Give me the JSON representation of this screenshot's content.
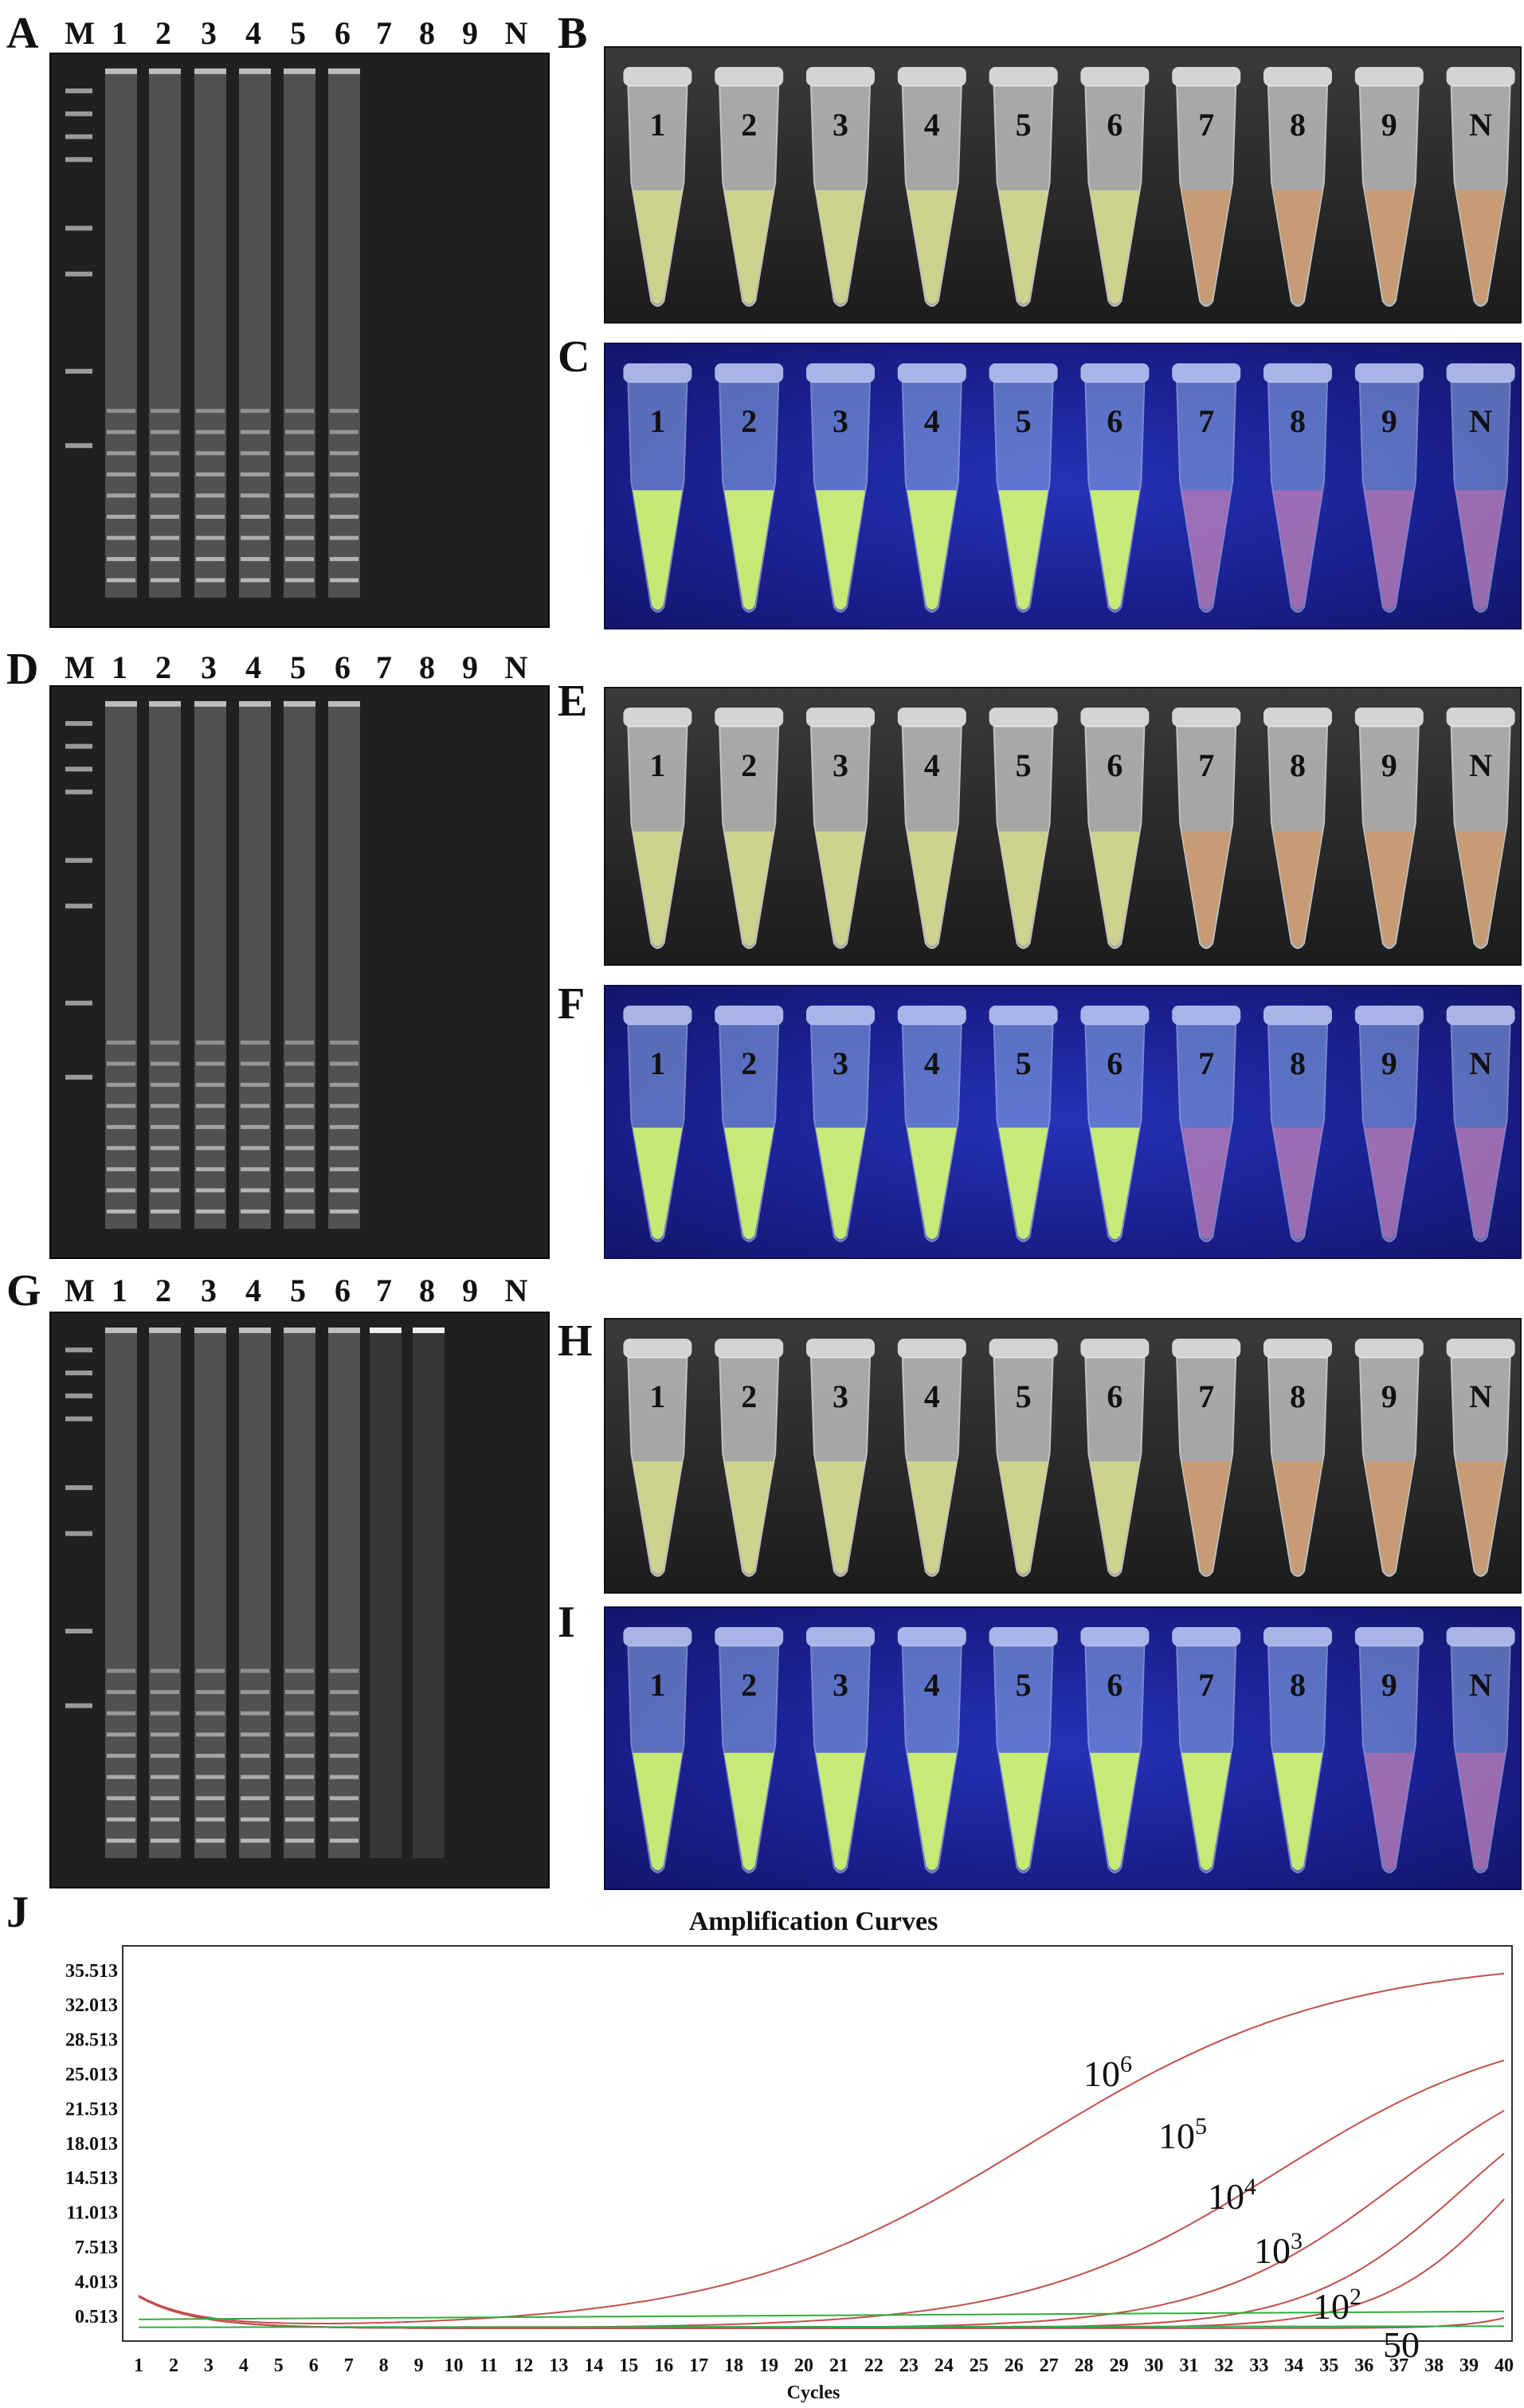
{
  "figure": {
    "panels": {
      "A": "A",
      "B": "B",
      "C": "C",
      "D": "D",
      "E": "E",
      "F": "F",
      "G": "G",
      "H": "H",
      "I": "I",
      "J": "J"
    },
    "gel_lane_labels": [
      "M",
      "1",
      "2",
      "3",
      "4",
      "5",
      "6",
      "7",
      "8",
      "9",
      "N"
    ],
    "tube_labels": [
      "1",
      "2",
      "3",
      "4",
      "5",
      "6",
      "7",
      "8",
      "9",
      "N"
    ],
    "gels": {
      "A": {
        "bright_lanes": [
          1,
          2,
          3,
          4,
          5,
          6
        ],
        "dim_lanes": []
      },
      "D": {
        "bright_lanes": [
          1,
          2,
          3,
          4,
          5,
          6
        ],
        "dim_lanes": []
      },
      "G": {
        "bright_lanes": [
          1,
          2,
          3,
          4,
          5,
          6
        ],
        "dim_lanes": [
          7,
          8
        ]
      }
    },
    "tube_results": {
      "B": {
        "mode": "daylight",
        "positive_through": 6
      },
      "C": {
        "mode": "uv",
        "positive_through": 6
      },
      "E": {
        "mode": "daylight",
        "positive_through": 6
      },
      "F": {
        "mode": "uv",
        "positive_through": 6
      },
      "H": {
        "mode": "daylight",
        "positive_through": 6
      },
      "I": {
        "mode": "uv",
        "positive_through": 8
      }
    },
    "colors": {
      "positive_day": "#d8dd8a",
      "negative_day": "#cf9a68",
      "positive_uv": "#d9ff6a",
      "negative_uv": "#c66aa8",
      "curve_red": "#c0504d",
      "curve_green": "#2fae3a"
    }
  },
  "chart_data": {
    "type": "line",
    "title": "Amplification Curves",
    "xlabel": "Cycles",
    "ylabel": "",
    "x_ticks": [
      "1",
      "2",
      "3",
      "4",
      "5",
      "6",
      "7",
      "8",
      "9",
      "10",
      "11",
      "12",
      "13",
      "14",
      "15",
      "16",
      "17",
      "18",
      "19",
      "20",
      "21",
      "22",
      "23",
      "24",
      "25",
      "26",
      "27",
      "28",
      "29",
      "30",
      "31",
      "32",
      "33",
      "34",
      "35",
      "36",
      "37",
      "38",
      "39",
      "40"
    ],
    "y_ticks": [
      "35.513",
      "32.013",
      "28.513",
      "25.013",
      "21.513",
      "18.013",
      "14.513",
      "11.013",
      "7.513",
      "4.013",
      "0.513"
    ],
    "xlim": [
      1,
      40
    ],
    "ylim": [
      -2,
      38
    ],
    "series": [
      {
        "name": "10^6",
        "label_base": "10",
        "label_exp": "6",
        "color": "#c0504d",
        "ct": 22.5,
        "plateau": 37.5,
        "k": 0.23
      },
      {
        "name": "10^5",
        "label_base": "10",
        "label_exp": "5",
        "color": "#c0504d",
        "ct": 29.5,
        "plateau": 31.5,
        "k": 0.28
      },
      {
        "name": "10^4",
        "label_base": "10",
        "label_exp": "4",
        "color": "#c0504d",
        "ct": 33.0,
        "plateau": 29.5,
        "k": 0.36
      },
      {
        "name": "10^3",
        "label_base": "10",
        "label_exp": "3",
        "color": "#c0504d",
        "ct": 34.8,
        "plateau": 28.0,
        "k": 0.45
      },
      {
        "name": "10^2",
        "label_base": "10",
        "label_exp": "2",
        "color": "#c0504d",
        "ct": 36.5,
        "plateau": 30.0,
        "k": 0.52
      },
      {
        "name": "50",
        "label_base": "50",
        "label_exp": "",
        "color": "#c0504d",
        "ct": 38.8,
        "plateau": 14.0,
        "k": 0.9
      },
      {
        "name": "",
        "label_base": "",
        "label_exp": "",
        "color": "#2fae3a",
        "flat": 0.2,
        "end": 1.0
      },
      {
        "name": "",
        "label_base": "",
        "label_exp": "",
        "color": "#2fae3a",
        "flat": -0.6,
        "end": -0.5
      }
    ]
  }
}
